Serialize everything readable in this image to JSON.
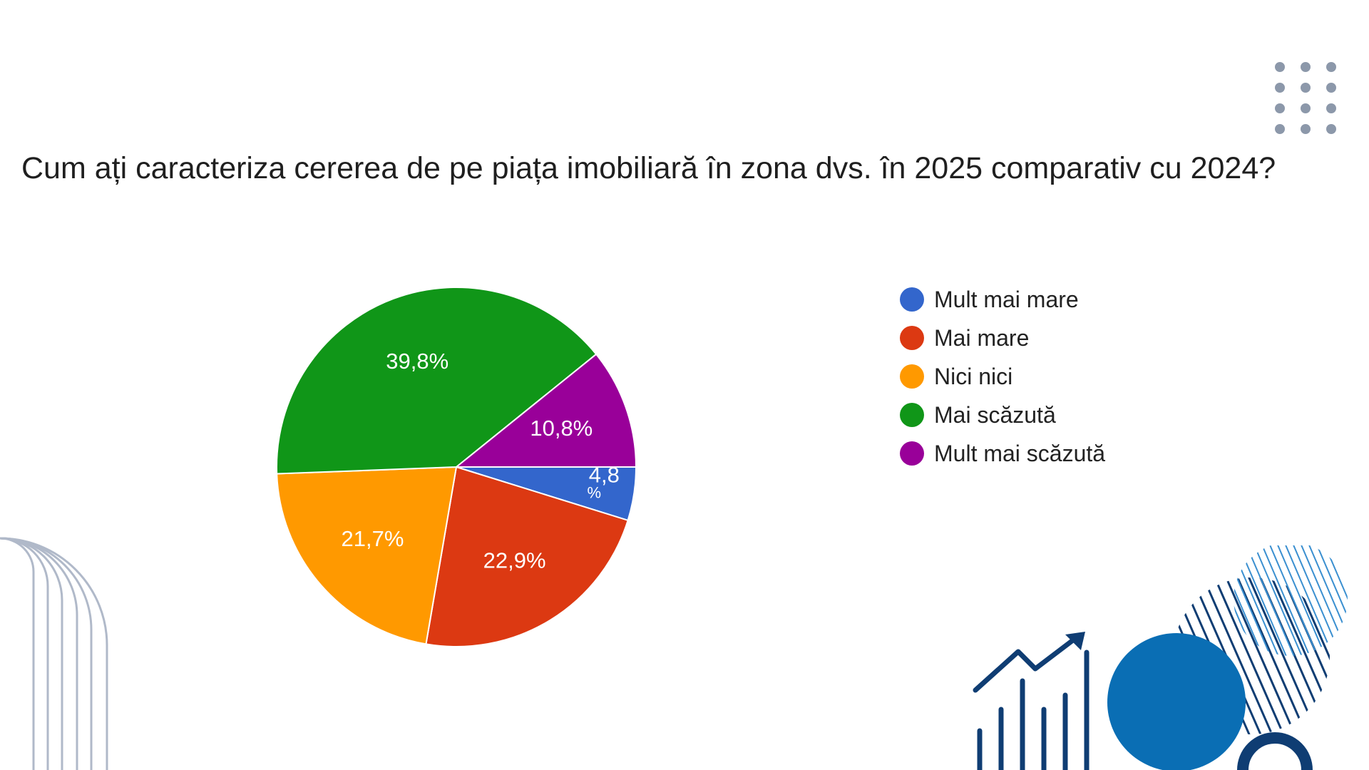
{
  "title": "Cum ați caracteriza cererea de pe piața imobiliară în zona dvs. în 2025 comparativ cu 2024?",
  "chart_data": {
    "type": "pie",
    "categories": [
      "Mult mai mare",
      "Mai mare",
      "Nici nici",
      "Mai scăzută",
      "Mult mai scăzută"
    ],
    "values": [
      4.8,
      22.9,
      21.7,
      39.8,
      10.8
    ],
    "labels": [
      "4,8 %",
      "22,9%",
      "21,7%",
      "39,8%",
      "10,8%"
    ],
    "colors": [
      "#3366cc",
      "#dc3912",
      "#ff9900",
      "#109618",
      "#990099"
    ],
    "legend_position": "right",
    "start": "3 o'clock, clockwise"
  },
  "legend": {
    "items": [
      {
        "label": "Mult mai mare",
        "color": "#3366cc"
      },
      {
        "label": "Mai mare",
        "color": "#dc3912"
      },
      {
        "label": "Nici nici",
        "color": "#ff9900"
      },
      {
        "label": "Mai scăzută",
        "color": "#109618"
      },
      {
        "label": "Mult mai scăzută",
        "color": "#990099"
      }
    ]
  },
  "decor": {
    "dot_color": "#8c98aa",
    "arch_color": "#b0b9c9",
    "navy": "#0f3d73",
    "blue": "#0a6eb4",
    "light_blue": "#3a8fd0"
  }
}
